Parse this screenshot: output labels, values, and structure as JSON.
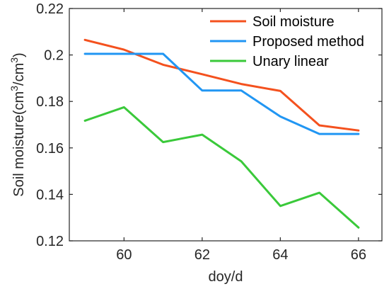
{
  "chart_data": {
    "type": "line",
    "title": "",
    "xlabel": "doy/d",
    "ylabel": "Soil moisture(cm³/cm³)",
    "ylabel_parts": {
      "pre": "Soil moisture(cm",
      "sup1": "3",
      "mid": "/cm",
      "sup2": "3",
      "post": ")"
    },
    "xlim": [
      58.6,
      66.6
    ],
    "ylim": [
      0.12,
      0.22
    ],
    "xticks": [
      60,
      62,
      64,
      66
    ],
    "yticks": [
      0.12,
      0.14,
      0.16,
      0.18,
      0.2,
      0.22
    ],
    "xtick_labels": [
      "60",
      "62",
      "64",
      "66"
    ],
    "ytick_labels": [
      "0.12",
      "0.14",
      "0.16",
      "0.18",
      "0.2",
      "0.22"
    ],
    "grid": false,
    "legend_position": "top-right",
    "x": [
      59,
      60,
      61,
      62,
      63,
      64,
      65,
      66
    ],
    "series": [
      {
        "name": "Soil moisture",
        "color": "#f4511e",
        "values": [
          0.2065,
          0.2023,
          0.1958,
          0.1917,
          0.1875,
          0.1845,
          0.1697,
          0.1675
        ]
      },
      {
        "name": "Proposed method",
        "color": "#2196f3",
        "values": [
          0.2005,
          0.2005,
          0.2005,
          0.1847,
          0.1847,
          0.1735,
          0.166,
          0.166
        ]
      },
      {
        "name": "Unary linear",
        "color": "#3ac93a",
        "values": [
          0.1717,
          0.1775,
          0.1625,
          0.1657,
          0.1542,
          0.135,
          0.1407,
          0.1257
        ]
      }
    ]
  }
}
